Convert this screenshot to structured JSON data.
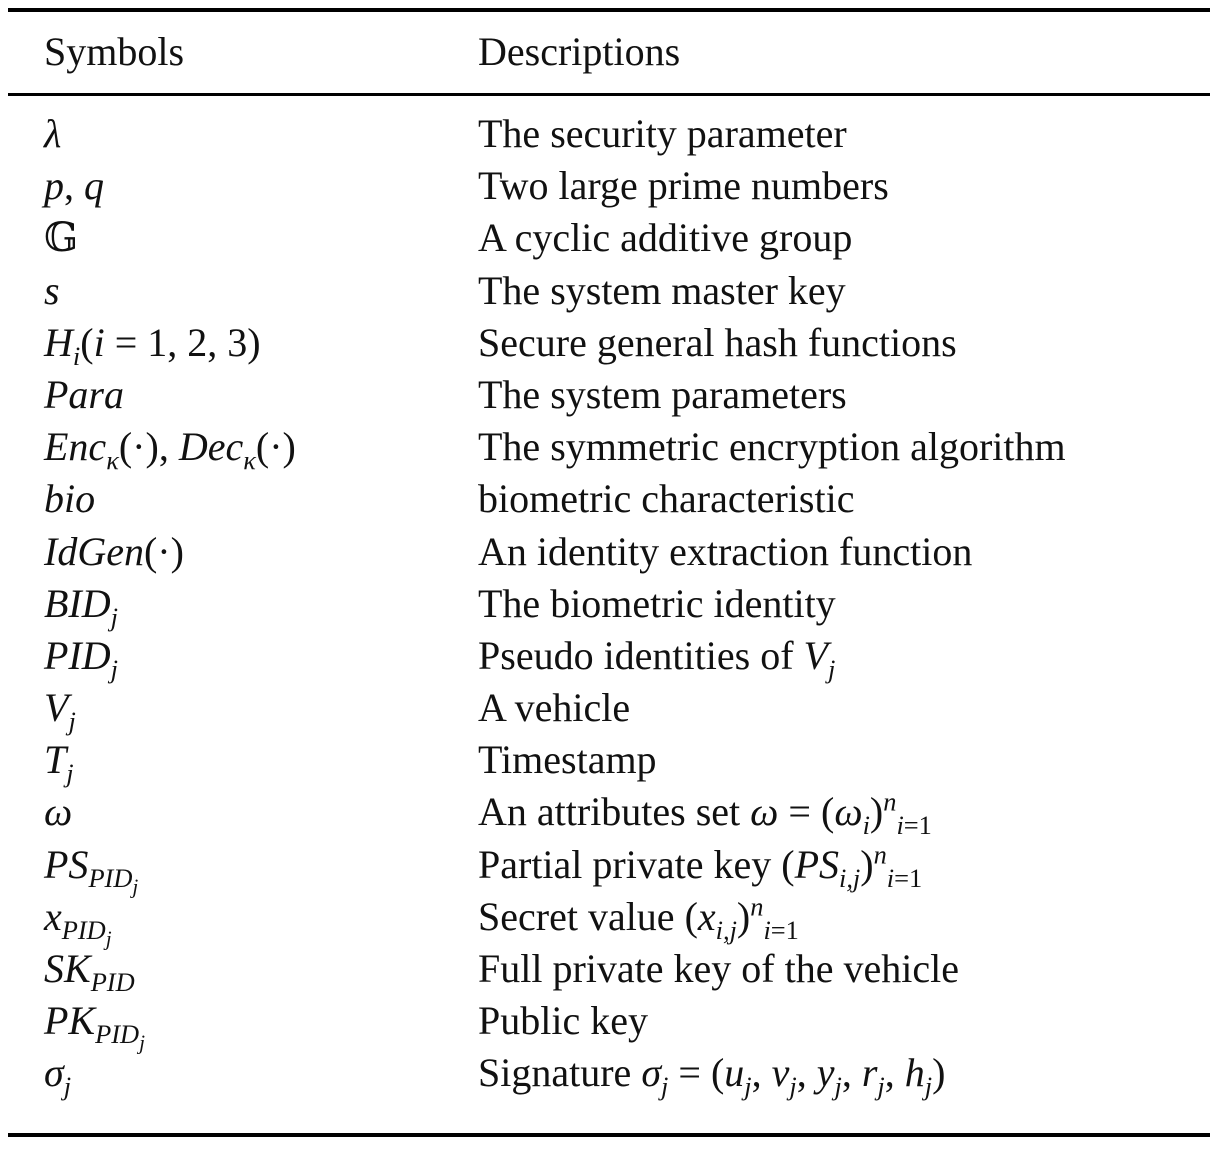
{
  "table": {
    "headers": {
      "symbols": "Symbols",
      "descriptions": "Descriptions"
    },
    "rows": [
      {
        "description": "The security parameter"
      },
      {
        "description": "Two large prime numbers"
      },
      {
        "description": "A cyclic additive group"
      },
      {
        "description": "The system master key"
      },
      {
        "description": "Secure general hash functions"
      },
      {
        "description": "The system parameters"
      },
      {
        "description": "The symmetric encryption algorithm"
      },
      {
        "description": "biometric characteristic"
      },
      {
        "description": "An identity extraction function"
      },
      {
        "description": "The biometric identity"
      },
      {
        "description": "Pseudo identities of "
      },
      {
        "description": "A vehicle"
      },
      {
        "description": "Timestamp"
      },
      {
        "description": "An attributes set "
      },
      {
        "description": "Partial private key "
      },
      {
        "description": "Secret value "
      },
      {
        "description": "Full private key of the vehicle"
      },
      {
        "description": "Public key"
      },
      {
        "description": "Signature "
      }
    ]
  }
}
